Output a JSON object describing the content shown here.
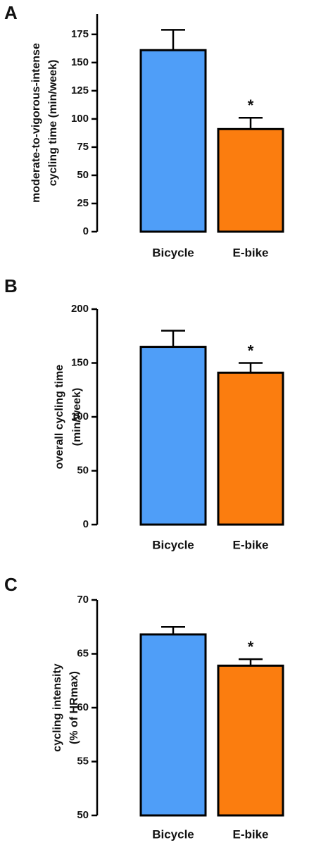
{
  "chart_data": [
    {
      "type": "bar",
      "panel_label": "A",
      "ylabel": [
        "moderate-to-vigorous-intense",
        "cycling time (min/week)"
      ],
      "categories": [
        "Bicycle",
        "E-bike"
      ],
      "values": [
        161,
        91
      ],
      "errors": [
        18,
        10
      ],
      "colors": [
        "#4f9ef8",
        "#fb7d0f"
      ],
      "ylim": [
        0,
        193
      ],
      "yticks": [
        0,
        25,
        50,
        75,
        100,
        125,
        150,
        175
      ],
      "annotations": [
        {
          "text": "*",
          "category": "E-bike"
        }
      ]
    },
    {
      "type": "bar",
      "panel_label": "B",
      "ylabel": [
        "overall cycling time",
        "(min/week)"
      ],
      "categories": [
        "Bicycle",
        "E-bike"
      ],
      "values": [
        165,
        141
      ],
      "errors": [
        15,
        9
      ],
      "colors": [
        "#4f9ef8",
        "#fb7d0f"
      ],
      "ylim": [
        0,
        200
      ],
      "yticks": [
        0,
        50,
        100,
        150,
        200
      ],
      "annotations": [
        {
          "text": "*",
          "category": "E-bike"
        }
      ]
    },
    {
      "type": "bar",
      "panel_label": "C",
      "ylabel": [
        "cycling intensity",
        "(% of HRmax)"
      ],
      "categories": [
        "Bicycle",
        "E-bike"
      ],
      "values": [
        66.8,
        63.9
      ],
      "errors": [
        0.7,
        0.6
      ],
      "colors": [
        "#4f9ef8",
        "#fb7d0f"
      ],
      "ylim": [
        50,
        70
      ],
      "yticks": [
        50,
        55,
        60,
        65,
        70
      ],
      "annotations": [
        {
          "text": "*",
          "category": "E-bike"
        }
      ]
    }
  ]
}
